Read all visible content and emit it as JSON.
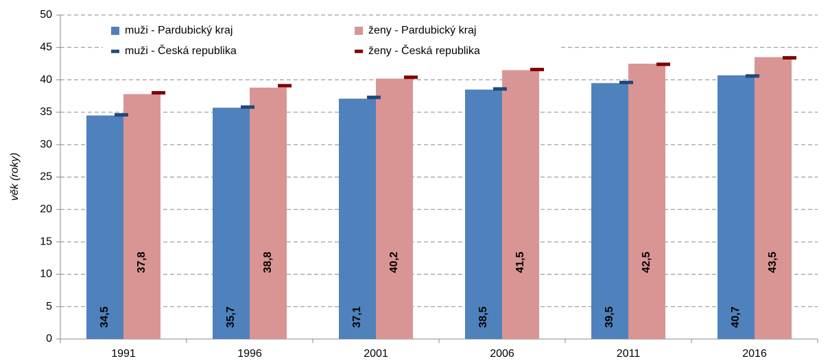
{
  "chart_data": {
    "type": "bar",
    "categories": [
      "1991",
      "1996",
      "2001",
      "2006",
      "2011",
      "2016"
    ],
    "ylabel": "věk (roky)",
    "ylim": [
      0,
      50
    ],
    "yticks": [
      0,
      5,
      10,
      15,
      20,
      25,
      30,
      35,
      40,
      45,
      50
    ],
    "grid": true,
    "legend": "top-left",
    "series": [
      {
        "name": "muži - Pardubický kraj",
        "color": "#4f81bd",
        "values": [
          34.5,
          35.7,
          37.1,
          38.5,
          39.5,
          40.7
        ],
        "value_labels": [
          "34,5",
          "35,7",
          "37,1",
          "38,5",
          "39,5",
          "40,7"
        ]
      },
      {
        "name": "ženy - Pardubický kraj",
        "color": "#d99594",
        "values": [
          37.8,
          38.8,
          40.2,
          41.5,
          42.5,
          43.5
        ],
        "value_labels": [
          "37,8",
          "38,8",
          "40,2",
          "41,5",
          "42,5",
          "43,5"
        ]
      },
      {
        "name": "muži - Česká republika",
        "color": "#1f497d",
        "marker": "dash",
        "values": [
          34.6,
          35.8,
          37.3,
          38.6,
          39.6,
          40.6
        ]
      },
      {
        "name": "ženy - Česká republika",
        "color": "#7f0000",
        "marker": "dash",
        "values": [
          38.0,
          39.1,
          40.4,
          41.6,
          42.4,
          43.4
        ]
      }
    ]
  }
}
